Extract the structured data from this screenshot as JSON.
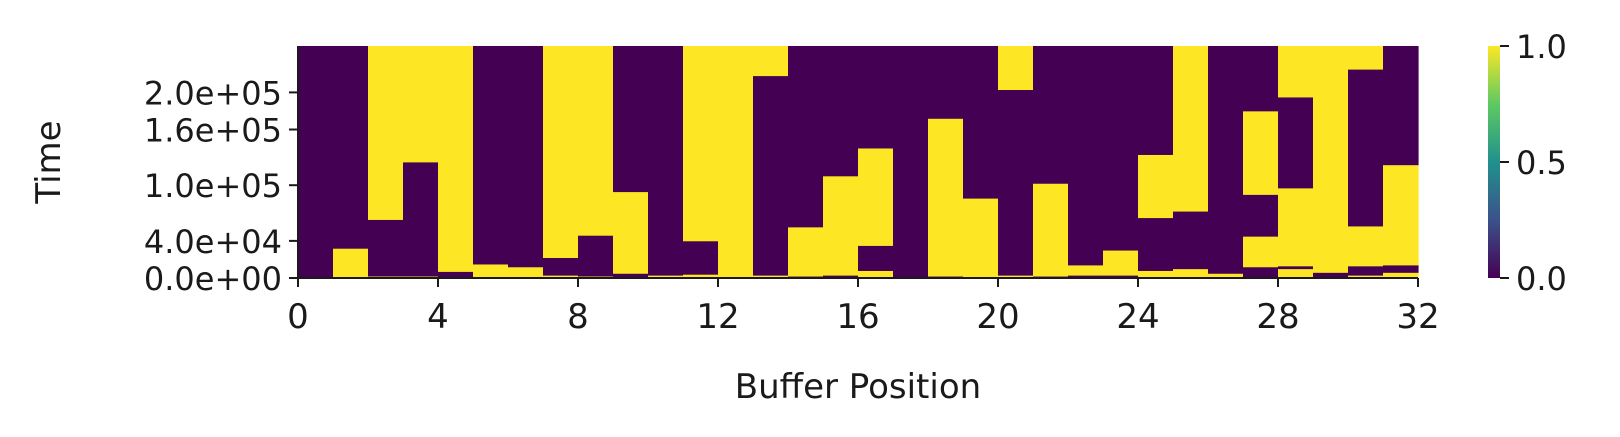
{
  "chart_data": {
    "type": "heatmap",
    "title": "",
    "xlabel": "Buffer Position",
    "ylabel": "Time",
    "x_range": [
      0,
      32
    ],
    "y_range": [
      0,
      250000
    ],
    "x_ticks": [
      0,
      4,
      8,
      12,
      16,
      20,
      24,
      28,
      32
    ],
    "x_tick_labels": [
      "0",
      "4",
      "8",
      "12",
      "16",
      "20",
      "24",
      "28",
      "32"
    ],
    "y_ticks": [
      0,
      40000,
      100000,
      160000,
      200000
    ],
    "y_tick_labels": [
      "0.0e+00",
      "4.0e+04",
      "1.0e+05",
      "1.6e+05",
      "2.0e+05"
    ],
    "colorbar": {
      "min": 0,
      "max": 1,
      "ticks": [
        0,
        0.5,
        1
      ],
      "tick_labels": [
        "0.0",
        "0.5",
        "1.0"
      ],
      "colormap": "viridis",
      "colors": [
        "#440154",
        "#3b528b",
        "#21918c",
        "#5ec962",
        "#fde725"
      ]
    },
    "low_color": "#440154",
    "high_color": "#fde725",
    "grid": false,
    "columns": [
      {
        "position": 0,
        "cells": [
          {
            "from": 0,
            "to": 250000,
            "value": 0
          }
        ]
      },
      {
        "position": 1,
        "cells": [
          {
            "from": 0,
            "to": 32000,
            "value": 1
          },
          {
            "from": 32000,
            "to": 250000,
            "value": 0
          }
        ]
      },
      {
        "position": 2,
        "cells": [
          {
            "from": 0,
            "to": 2000,
            "value": 1
          },
          {
            "from": 2000,
            "to": 63000,
            "value": 0
          },
          {
            "from": 63000,
            "to": 250000,
            "value": 1
          }
        ]
      },
      {
        "position": 3,
        "cells": [
          {
            "from": 0,
            "to": 2000,
            "value": 1
          },
          {
            "from": 2000,
            "to": 125000,
            "value": 0
          },
          {
            "from": 125000,
            "to": 250000,
            "value": 1
          }
        ]
      },
      {
        "position": 4,
        "cells": [
          {
            "from": 0,
            "to": 7000,
            "value": 0
          },
          {
            "from": 7000,
            "to": 250000,
            "value": 1
          }
        ]
      },
      {
        "position": 5,
        "cells": [
          {
            "from": 0,
            "to": 15000,
            "value": 1
          },
          {
            "from": 15000,
            "to": 250000,
            "value": 0
          }
        ]
      },
      {
        "position": 6,
        "cells": [
          {
            "from": 0,
            "to": 12000,
            "value": 1
          },
          {
            "from": 12000,
            "to": 250000,
            "value": 0
          }
        ]
      },
      {
        "position": 7,
        "cells": [
          {
            "from": 0,
            "to": 3000,
            "value": 1
          },
          {
            "from": 3000,
            "to": 22000,
            "value": 0
          },
          {
            "from": 22000,
            "to": 250000,
            "value": 1
          }
        ]
      },
      {
        "position": 8,
        "cells": [
          {
            "from": 0,
            "to": 2000,
            "value": 1
          },
          {
            "from": 2000,
            "to": 46000,
            "value": 0
          },
          {
            "from": 46000,
            "to": 250000,
            "value": 1
          }
        ]
      },
      {
        "position": 9,
        "cells": [
          {
            "from": 0,
            "to": 5000,
            "value": 0
          },
          {
            "from": 5000,
            "to": 93000,
            "value": 1
          },
          {
            "from": 93000,
            "to": 250000,
            "value": 0
          }
        ]
      },
      {
        "position": 10,
        "cells": [
          {
            "from": 0,
            "to": 3000,
            "value": 1
          },
          {
            "from": 3000,
            "to": 250000,
            "value": 0
          }
        ]
      },
      {
        "position": 11,
        "cells": [
          {
            "from": 0,
            "to": 4000,
            "value": 1
          },
          {
            "from": 4000,
            "to": 40000,
            "value": 0
          },
          {
            "from": 40000,
            "to": 250000,
            "value": 1
          }
        ]
      },
      {
        "position": 12,
        "cells": [
          {
            "from": 0,
            "to": 250000,
            "value": 1
          }
        ]
      },
      {
        "position": 13,
        "cells": [
          {
            "from": 0,
            "to": 3000,
            "value": 1
          },
          {
            "from": 3000,
            "to": 218000,
            "value": 0
          },
          {
            "from": 218000,
            "to": 250000,
            "value": 1
          }
        ]
      },
      {
        "position": 14,
        "cells": [
          {
            "from": 0,
            "to": 2000,
            "value": 0
          },
          {
            "from": 2000,
            "to": 55000,
            "value": 1
          },
          {
            "from": 55000,
            "to": 250000,
            "value": 0
          }
        ]
      },
      {
        "position": 15,
        "cells": [
          {
            "from": 0,
            "to": 3000,
            "value": 0
          },
          {
            "from": 3000,
            "to": 110000,
            "value": 1
          },
          {
            "from": 110000,
            "to": 250000,
            "value": 0
          }
        ]
      },
      {
        "position": 16,
        "cells": [
          {
            "from": 0,
            "to": 8000,
            "value": 1
          },
          {
            "from": 8000,
            "to": 35000,
            "value": 0
          },
          {
            "from": 35000,
            "to": 140000,
            "value": 1
          },
          {
            "from": 140000,
            "to": 250000,
            "value": 0
          }
        ]
      },
      {
        "position": 17,
        "cells": [
          {
            "from": 0,
            "to": 250000,
            "value": 0
          }
        ]
      },
      {
        "position": 18,
        "cells": [
          {
            "from": 0,
            "to": 2000,
            "value": 0
          },
          {
            "from": 2000,
            "to": 172000,
            "value": 1
          },
          {
            "from": 172000,
            "to": 250000,
            "value": 0
          }
        ]
      },
      {
        "position": 19,
        "cells": [
          {
            "from": 0,
            "to": 5000,
            "value": 1
          },
          {
            "from": 5000,
            "to": 86000,
            "value": 1
          },
          {
            "from": 86000,
            "to": 250000,
            "value": 0
          }
        ]
      },
      {
        "position": 20,
        "cells": [
          {
            "from": 0,
            "to": 3000,
            "value": 1
          },
          {
            "from": 3000,
            "to": 203000,
            "value": 0
          },
          {
            "from": 203000,
            "to": 250000,
            "value": 1
          }
        ]
      },
      {
        "position": 21,
        "cells": [
          {
            "from": 0,
            "to": 2000,
            "value": 0
          },
          {
            "from": 2000,
            "to": 102000,
            "value": 1
          },
          {
            "from": 102000,
            "to": 250000,
            "value": 0
          }
        ]
      },
      {
        "position": 22,
        "cells": [
          {
            "from": 0,
            "to": 3000,
            "value": 0
          },
          {
            "from": 3000,
            "to": 14000,
            "value": 1
          },
          {
            "from": 14000,
            "to": 250000,
            "value": 0
          }
        ]
      },
      {
        "position": 23,
        "cells": [
          {
            "from": 0,
            "to": 3000,
            "value": 0
          },
          {
            "from": 3000,
            "to": 30000,
            "value": 1
          },
          {
            "from": 30000,
            "to": 250000,
            "value": 0
          }
        ]
      },
      {
        "position": 24,
        "cells": [
          {
            "from": 0,
            "to": 8000,
            "value": 1
          },
          {
            "from": 8000,
            "to": 65000,
            "value": 0
          },
          {
            "from": 65000,
            "to": 133000,
            "value": 1
          },
          {
            "from": 133000,
            "to": 250000,
            "value": 0
          }
        ]
      },
      {
        "position": 25,
        "cells": [
          {
            "from": 0,
            "to": 10000,
            "value": 1
          },
          {
            "from": 10000,
            "to": 72000,
            "value": 0
          },
          {
            "from": 72000,
            "to": 250000,
            "value": 1
          }
        ]
      },
      {
        "position": 26,
        "cells": [
          {
            "from": 0,
            "to": 5000,
            "value": 1
          },
          {
            "from": 5000,
            "to": 250000,
            "value": 0
          }
        ]
      },
      {
        "position": 27,
        "cells": [
          {
            "from": 0,
            "to": 12000,
            "value": 0
          },
          {
            "from": 12000,
            "to": 45000,
            "value": 1
          },
          {
            "from": 45000,
            "to": 90000,
            "value": 0
          },
          {
            "from": 90000,
            "to": 180000,
            "value": 1
          },
          {
            "from": 180000,
            "to": 250000,
            "value": 0
          }
        ]
      },
      {
        "position": 28,
        "cells": [
          {
            "from": 0,
            "to": 10000,
            "value": 1
          },
          {
            "from": 10000,
            "to": 13000,
            "value": 0
          },
          {
            "from": 13000,
            "to": 97000,
            "value": 1
          },
          {
            "from": 97000,
            "to": 195000,
            "value": 0
          },
          {
            "from": 195000,
            "to": 250000,
            "value": 1
          }
        ]
      },
      {
        "position": 29,
        "cells": [
          {
            "from": 0,
            "to": 6000,
            "value": 0
          },
          {
            "from": 6000,
            "to": 250000,
            "value": 1
          }
        ]
      },
      {
        "position": 30,
        "cells": [
          {
            "from": 0,
            "to": 3000,
            "value": 1
          },
          {
            "from": 3000,
            "to": 13000,
            "value": 0
          },
          {
            "from": 13000,
            "to": 56000,
            "value": 1
          },
          {
            "from": 56000,
            "to": 225000,
            "value": 0
          },
          {
            "from": 225000,
            "to": 250000,
            "value": 1
          }
        ]
      },
      {
        "position": 31,
        "cells": [
          {
            "from": 0,
            "to": 6000,
            "value": 1
          },
          {
            "from": 6000,
            "to": 14000,
            "value": 0
          },
          {
            "from": 14000,
            "to": 30000,
            "value": 1
          },
          {
            "from": 30000,
            "to": 122000,
            "value": 1
          },
          {
            "from": 122000,
            "to": 250000,
            "value": 0
          }
        ]
      }
    ]
  }
}
